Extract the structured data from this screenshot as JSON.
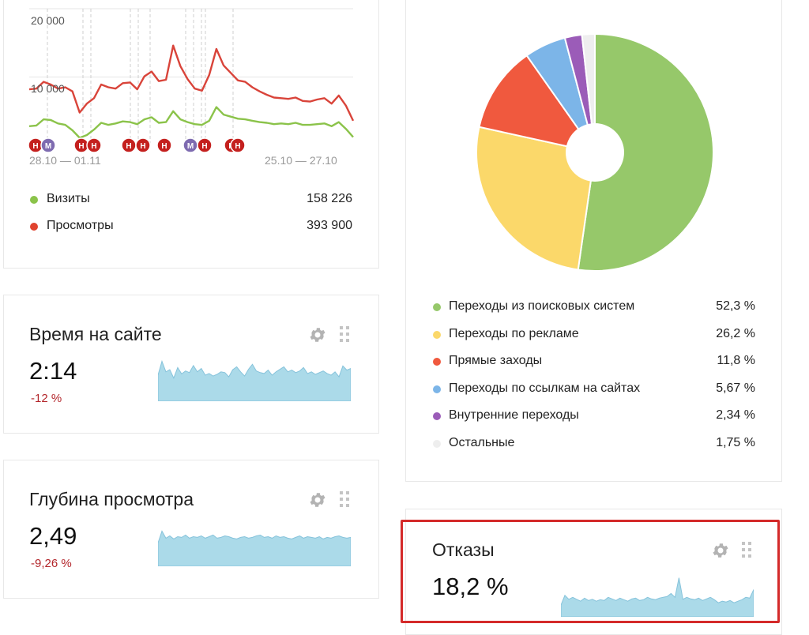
{
  "traffic": {
    "y_ticks": [
      "20 000",
      "10 000"
    ],
    "date_left": "28.10 — 01.11",
    "date_right": "25.10 — 27.10",
    "legend": [
      {
        "label": "Визиты",
        "value": "158 226",
        "color": "#8bc34a"
      },
      {
        "label": "Просмотры",
        "value": "393 900",
        "color": "#e0432f"
      }
    ],
    "markers": [
      "Н",
      "М",
      "Н",
      "Н",
      "Н",
      "Н",
      "Н",
      "М",
      "Н",
      "Н",
      "Н"
    ],
    "colors": {
      "visits": "#8bc34a",
      "views": "#d9443a",
      "marker_red": "#c4201e",
      "marker_purple": "#7e6bb0"
    }
  },
  "sources": {
    "legend": [
      {
        "label": "Переходы из поисковых систем",
        "value": "52,3 %",
        "color": "#96c86a"
      },
      {
        "label": "Переходы по рекламе",
        "value": "26,2 %",
        "color": "#fbd86a"
      },
      {
        "label": "Прямые заходы",
        "value": "11,8 %",
        "color": "#f0593e"
      },
      {
        "label": "Переходы по ссылкам на сайтах",
        "value": "5,67 %",
        "color": "#7cb5e8"
      },
      {
        "label": "Внутренние переходы",
        "value": "2,34 %",
        "color": "#9b5cb8"
      },
      {
        "label": "Остальные",
        "value": "1,75 %",
        "color": "#eeeeee"
      }
    ]
  },
  "time_on_site": {
    "title": "Время на сайте",
    "value": "2:14",
    "delta": "-12 %"
  },
  "depth": {
    "title": "Глубина просмотра",
    "value": "2,49",
    "delta": "-9,26 %"
  },
  "bounce": {
    "title": "Отказы",
    "value": "18,2 %"
  },
  "chart_data": [
    {
      "type": "line",
      "x_labels": [
        "28.10 — 01.11",
        "25.10 — 27.10"
      ],
      "ylim": [
        0,
        20000
      ],
      "y_ticks": [
        10000,
        20000
      ],
      "grid": true,
      "series": [
        {
          "name": "Визиты",
          "values": [
            2800,
            2900,
            3800,
            3700,
            3200,
            3000,
            2200,
            1100,
            1500,
            2300,
            3300,
            3000,
            3200,
            3500,
            3400,
            3100,
            3800,
            4100,
            3300,
            3400,
            5000,
            3800,
            3400,
            3100,
            3000,
            3600,
            5600,
            4500,
            4200,
            3900,
            3800,
            3600,
            3400,
            3300,
            3100,
            3200,
            3100,
            3300,
            3000,
            3000,
            3100,
            3200,
            2800,
            3400,
            2400,
            1200
          ]
        },
        {
          "name": "Просмотры",
          "values": [
            8200,
            8300,
            9300,
            8900,
            8300,
            8500,
            7900,
            4800,
            6100,
            6900,
            8900,
            8500,
            8300,
            9100,
            9200,
            8200,
            10100,
            10800,
            9400,
            9600,
            14600,
            11600,
            9700,
            8300,
            8000,
            10300,
            14100,
            11700,
            10600,
            9500,
            9300,
            8500,
            7900,
            7400,
            7000,
            6900,
            6800,
            7000,
            6500,
            6400,
            6700,
            6900,
            6100,
            7300,
            5800,
            3600
          ]
        }
      ]
    },
    {
      "type": "pie",
      "categories": [
        "Переходы из поисковых систем",
        "Переходы по рекламе",
        "Прямые заходы",
        "Переходы по ссылкам на сайтах",
        "Внутренние переходы",
        "Остальные"
      ],
      "values": [
        52.3,
        26.2,
        11.8,
        5.67,
        2.34,
        1.75
      ]
    },
    {
      "type": "area",
      "values": [
        0.62,
        0.95,
        0.7,
        0.75,
        0.55,
        0.8,
        0.65,
        0.72,
        0.68,
        0.85,
        0.7,
        0.78,
        0.62,
        0.66,
        0.6,
        0.64,
        0.7,
        0.68,
        0.58,
        0.75,
        0.82,
        0.7,
        0.6,
        0.76,
        0.88,
        0.72,
        0.68,
        0.66,
        0.74,
        0.62,
        0.7,
        0.76,
        0.82,
        0.7,
        0.74,
        0.68,
        0.72,
        0.8,
        0.66,
        0.7,
        0.64,
        0.68,
        0.72,
        0.66,
        0.62,
        0.7,
        0.58,
        0.84,
        0.74,
        0.78
      ]
    },
    {
      "type": "area",
      "values": [
        0.6,
        0.9,
        0.72,
        0.78,
        0.7,
        0.76,
        0.74,
        0.8,
        0.72,
        0.76,
        0.74,
        0.78,
        0.72,
        0.76,
        0.8,
        0.72,
        0.74,
        0.78,
        0.76,
        0.72,
        0.7,
        0.74,
        0.76,
        0.72,
        0.74,
        0.78,
        0.8,
        0.74,
        0.76,
        0.72,
        0.78,
        0.74,
        0.76,
        0.72,
        0.7,
        0.74,
        0.78,
        0.72,
        0.76,
        0.74,
        0.72,
        0.76,
        0.7,
        0.74,
        0.72,
        0.76,
        0.78,
        0.74,
        0.72,
        0.74
      ]
    },
    {
      "type": "area",
      "values": [
        0.3,
        0.55,
        0.45,
        0.5,
        0.45,
        0.4,
        0.48,
        0.42,
        0.45,
        0.4,
        0.44,
        0.42,
        0.5,
        0.46,
        0.42,
        0.48,
        0.44,
        0.4,
        0.46,
        0.48,
        0.42,
        0.44,
        0.5,
        0.46,
        0.44,
        0.48,
        0.5,
        0.52,
        0.6,
        0.5,
        1.0,
        0.45,
        0.5,
        0.46,
        0.44,
        0.48,
        0.42,
        0.46,
        0.5,
        0.44,
        0.36,
        0.4,
        0.38,
        0.42,
        0.36,
        0.4,
        0.44,
        0.5,
        0.48,
        0.7
      ]
    }
  ]
}
